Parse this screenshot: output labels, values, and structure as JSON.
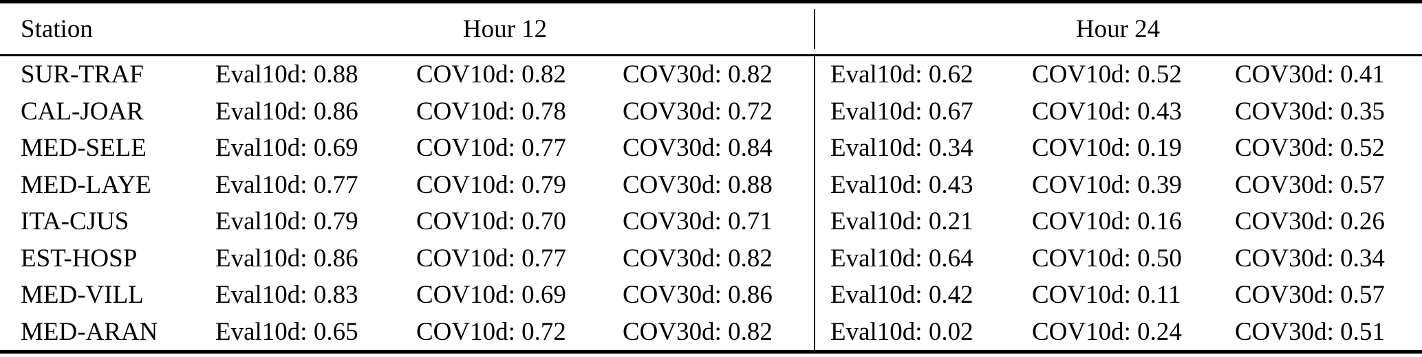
{
  "colors": {
    "background": "#ffffff",
    "text": "#000000",
    "rule": "#000000"
  },
  "table": {
    "header": {
      "station": "Station",
      "hour12": "Hour 12",
      "hour24": "Hour 24"
    },
    "rows": [
      {
        "station": "SUR-TRAF",
        "cells": [
          "Eval10d: 0.88",
          "COV10d: 0.82",
          "COV30d: 0.82",
          "Eval10d: 0.62",
          "COV10d: 0.52",
          "COV30d: 0.41"
        ]
      },
      {
        "station": "CAL-JOAR",
        "cells": [
          "Eval10d: 0.86",
          "COV10d: 0.78",
          "COV30d: 0.72",
          "Eval10d: 0.67",
          "COV10d: 0.43",
          "COV30d: 0.35"
        ]
      },
      {
        "station": "MED-SELE",
        "cells": [
          "Eval10d: 0.69",
          "COV10d: 0.77",
          "COV30d: 0.84",
          "Eval10d: 0.34",
          "COV10d: 0.19",
          "COV30d: 0.52"
        ]
      },
      {
        "station": "MED-LAYE",
        "cells": [
          "Eval10d: 0.77",
          "COV10d: 0.79",
          "COV30d: 0.88",
          "Eval10d: 0.43",
          "COV10d: 0.39",
          "COV30d: 0.57"
        ]
      },
      {
        "station": "ITA-CJUS",
        "cells": [
          "Eval10d: 0.79",
          "COV10d: 0.70",
          "COV30d: 0.71",
          "Eval10d: 0.21",
          "COV10d: 0.16",
          "COV30d: 0.26"
        ]
      },
      {
        "station": "EST-HOSP",
        "cells": [
          "Eval10d: 0.86",
          "COV10d: 0.77",
          "COV30d: 0.82",
          "Eval10d: 0.64",
          "COV10d: 0.50",
          "COV30d: 0.34"
        ]
      },
      {
        "station": "MED-VILL",
        "cells": [
          "Eval10d: 0.83",
          "COV10d: 0.69",
          "COV30d: 0.86",
          "Eval10d: 0.42",
          "COV10d: 0.11",
          "COV30d: 0.57"
        ]
      },
      {
        "station": "MED-ARAN",
        "cells": [
          "Eval10d: 0.65",
          "COV10d: 0.72",
          "COV30d: 0.82",
          "Eval10d: 0.02",
          "COV10d: 0.24",
          "COV30d: 0.51"
        ]
      }
    ]
  }
}
